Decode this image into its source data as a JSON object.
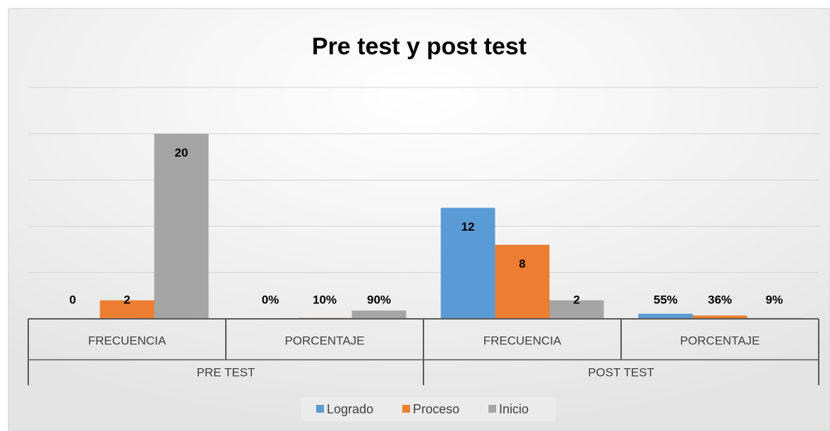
{
  "chart_data": {
    "type": "bar",
    "title": "Pre test y post test",
    "categories": [
      "FRECUENCIA",
      "PORCENTAJE",
      "FRECUENCIA",
      "PORCENTAJE"
    ],
    "category_groups": [
      "PRE TEST",
      "POST TEST"
    ],
    "series": [
      {
        "name": "Logrado",
        "color": "#5b9bd5",
        "values": [
          0,
          0,
          12,
          0.55
        ],
        "value_labels": [
          "0",
          "0%",
          "12",
          "55%"
        ]
      },
      {
        "name": "Proceso",
        "color": "#ed7d31",
        "values": [
          2,
          0.1,
          8,
          0.36
        ],
        "value_labels": [
          "2",
          "10%",
          "8",
          "36%"
        ]
      },
      {
        "name": "Inicio",
        "color": "#a5a5a5",
        "values": [
          20,
          0.9,
          2,
          0.09
        ],
        "value_labels": [
          "20",
          "90%",
          "2",
          "9%"
        ]
      }
    ],
    "ylim": [
      0,
      25
    ],
    "yticks": [
      0,
      5,
      10,
      15,
      20,
      25
    ],
    "grid": true,
    "legend": "bottom"
  }
}
